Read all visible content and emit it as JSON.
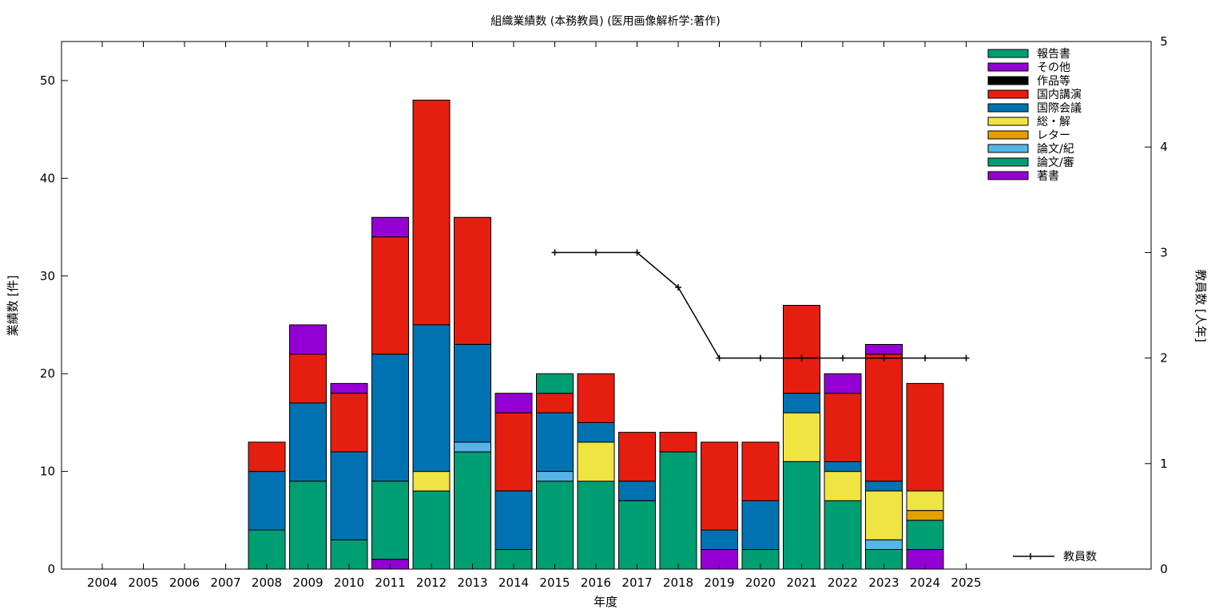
{
  "chart_data": {
    "type": "bar",
    "stacked": true,
    "title": "組織業績数 (本務教員) (医用画像解析学:著作)",
    "xlabel": "年度",
    "ylabel": "業績数 [件]",
    "y2label": "教員数 [人年]",
    "ylim": [
      0,
      54
    ],
    "y2lim": [
      0,
      5
    ],
    "yticks": [
      0,
      10,
      20,
      30,
      40,
      50
    ],
    "y2ticks": [
      0,
      1,
      2,
      3,
      4,
      5
    ],
    "grid": false,
    "legend_position": "top-right",
    "categories": [
      "2004",
      "2005",
      "2006",
      "2007",
      "2008",
      "2009",
      "2010",
      "2011",
      "2012",
      "2013",
      "2014",
      "2015",
      "2016",
      "2017",
      "2018",
      "2019",
      "2020",
      "2021",
      "2022",
      "2023",
      "2024",
      "2025"
    ],
    "series": [
      {
        "name": "著書",
        "color": "#9400d3",
        "values": [
          0,
          0,
          0,
          0,
          0,
          0,
          0,
          1,
          0,
          0,
          0,
          0,
          0,
          0,
          0,
          2,
          0,
          0,
          0,
          0,
          2,
          0
        ]
      },
      {
        "name": "論文/審",
        "color": "#009e73",
        "values": [
          0,
          0,
          0,
          0,
          4,
          9,
          3,
          8,
          8,
          12,
          2,
          9,
          9,
          7,
          12,
          0,
          2,
          11,
          7,
          2,
          3,
          0
        ]
      },
      {
        "name": "論文/紀",
        "color": "#56b4e9",
        "values": [
          0,
          0,
          0,
          0,
          0,
          0,
          0,
          0,
          0,
          1,
          0,
          1,
          0,
          0,
          0,
          0,
          0,
          0,
          0,
          1,
          0,
          0
        ]
      },
      {
        "name": "レター",
        "color": "#e69f00",
        "values": [
          0,
          0,
          0,
          0,
          0,
          0,
          0,
          0,
          0,
          0,
          0,
          0,
          0,
          0,
          0,
          0,
          0,
          0,
          0,
          0,
          1,
          0
        ]
      },
      {
        "name": "総・解",
        "color": "#f0e442",
        "values": [
          0,
          0,
          0,
          0,
          0,
          0,
          0,
          0,
          2,
          0,
          0,
          0,
          4,
          0,
          0,
          0,
          0,
          5,
          3,
          5,
          2,
          0
        ]
      },
      {
        "name": "国際会議",
        "color": "#0072b2",
        "values": [
          0,
          0,
          0,
          0,
          6,
          8,
          9,
          13,
          15,
          10,
          6,
          6,
          2,
          2,
          0,
          2,
          5,
          2,
          1,
          1,
          0,
          0
        ]
      },
      {
        "name": "国内講演",
        "color": "#e51e10",
        "values": [
          0,
          0,
          0,
          0,
          3,
          5,
          6,
          12,
          23,
          13,
          8,
          2,
          5,
          5,
          2,
          9,
          6,
          9,
          7,
          13,
          11,
          0
        ]
      },
      {
        "name": "作品等",
        "color": "#000000",
        "values": [
          0,
          0,
          0,
          0,
          0,
          0,
          0,
          0,
          0,
          0,
          0,
          0,
          0,
          0,
          0,
          0,
          0,
          0,
          0,
          0,
          0,
          0
        ]
      },
      {
        "name": "その他",
        "color": "#9400d3",
        "values": [
          0,
          0,
          0,
          0,
          0,
          3,
          1,
          2,
          0,
          0,
          2,
          0,
          0,
          0,
          0,
          0,
          0,
          0,
          2,
          1,
          0,
          0
        ]
      },
      {
        "name": "報告書",
        "color": "#009e73",
        "values": [
          0,
          0,
          0,
          0,
          0,
          0,
          0,
          0,
          0,
          0,
          0,
          2,
          0,
          0,
          0,
          0,
          0,
          0,
          0,
          0,
          0,
          0
        ]
      }
    ],
    "line_series": {
      "name": "教員数",
      "axis": "right",
      "color": "#000000",
      "x": [
        "2015",
        "2016",
        "2017",
        "2018",
        "2019",
        "2020",
        "2021",
        "2022",
        "2023",
        "2024",
        "2025"
      ],
      "values": [
        3,
        3,
        3,
        2.67,
        2,
        2,
        2,
        2,
        2,
        2,
        2
      ]
    },
    "legend_order": [
      "報告書",
      "その他",
      "作品等",
      "国内講演",
      "国際会議",
      "総・解",
      "レター",
      "論文/紀",
      "論文/審",
      "著書"
    ]
  }
}
